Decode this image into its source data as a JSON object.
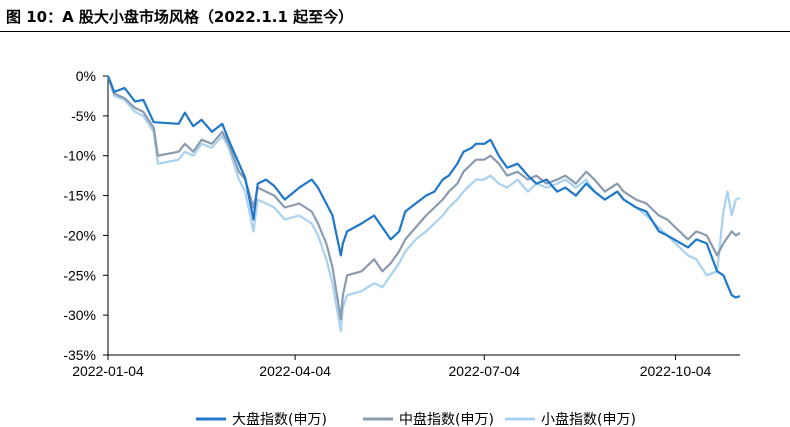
{
  "figure": {
    "title": "图 10：A 股大小盘市场风格（2022.1.1 起至今）"
  },
  "chart_data": {
    "type": "line",
    "ylim": [
      -35,
      0
    ],
    "yticks": [
      0,
      -5,
      -10,
      -15,
      -20,
      -25,
      -30,
      -35
    ],
    "ytick_labels": [
      "0%",
      "-5%",
      "-10%",
      "-15%",
      "-20%",
      "-25%",
      "-30%",
      "-35%"
    ],
    "xlim": [
      "2022-01-04",
      "2022-11-04"
    ],
    "xtick_labels": [
      "2022-01-04",
      "2022-04-04",
      "2022-07-04",
      "2022-10-04"
    ],
    "xticks": [
      "2022-01-04",
      "2022-04-04",
      "2022-07-04",
      "2022-10-04"
    ],
    "grid": false,
    "legend_position": "bottom",
    "series": [
      {
        "name": "大盘指数(申万)",
        "color": "#1f77c8",
        "points": [
          [
            "2022-01-04",
            0
          ],
          [
            "2022-01-07",
            -2.0
          ],
          [
            "2022-01-12",
            -1.5
          ],
          [
            "2022-01-17",
            -3.2
          ],
          [
            "2022-01-21",
            -3.0
          ],
          [
            "2022-01-26",
            -5.8
          ],
          [
            "2022-02-07",
            -6.0
          ],
          [
            "2022-02-10",
            -4.6
          ],
          [
            "2022-02-14",
            -6.3
          ],
          [
            "2022-02-18",
            -5.5
          ],
          [
            "2022-02-23",
            -7.0
          ],
          [
            "2022-02-28",
            -6.0
          ],
          [
            "2022-03-03",
            -8.0
          ],
          [
            "2022-03-08",
            -11.0
          ],
          [
            "2022-03-11",
            -12.8
          ],
          [
            "2022-03-15",
            -18.0
          ],
          [
            "2022-03-17",
            -13.5
          ],
          [
            "2022-03-21",
            -13.0
          ],
          [
            "2022-03-25",
            -13.8
          ],
          [
            "2022-03-30",
            -15.5
          ],
          [
            "2022-04-06",
            -14.0
          ],
          [
            "2022-04-12",
            -13.0
          ],
          [
            "2022-04-15",
            -14.0
          ],
          [
            "2022-04-19",
            -16.0
          ],
          [
            "2022-04-22",
            -17.5
          ],
          [
            "2022-04-26",
            -22.5
          ],
          [
            "2022-04-27",
            -21.0
          ],
          [
            "2022-04-29",
            -19.5
          ],
          [
            "2022-05-06",
            -18.5
          ],
          [
            "2022-05-12",
            -17.5
          ],
          [
            "2022-05-16",
            -19.0
          ],
          [
            "2022-05-20",
            -20.5
          ],
          [
            "2022-05-24",
            -19.5
          ],
          [
            "2022-05-27",
            -17.0
          ],
          [
            "2022-06-01",
            -16.0
          ],
          [
            "2022-06-06",
            -15.0
          ],
          [
            "2022-06-10",
            -14.5
          ],
          [
            "2022-06-14",
            -13.0
          ],
          [
            "2022-06-17",
            -12.5
          ],
          [
            "2022-06-21",
            -11.0
          ],
          [
            "2022-06-24",
            -9.5
          ],
          [
            "2022-06-28",
            -9.0
          ],
          [
            "2022-06-30",
            -8.5
          ],
          [
            "2022-07-04",
            -8.5
          ],
          [
            "2022-07-07",
            -8.0
          ],
          [
            "2022-07-11",
            -10.0
          ],
          [
            "2022-07-15",
            -11.5
          ],
          [
            "2022-07-20",
            -11.0
          ],
          [
            "2022-07-25",
            -12.5
          ],
          [
            "2022-07-29",
            -13.5
          ],
          [
            "2022-08-03",
            -13.0
          ],
          [
            "2022-08-08",
            -14.5
          ],
          [
            "2022-08-12",
            -14.0
          ],
          [
            "2022-08-17",
            -15.0
          ],
          [
            "2022-08-22",
            -13.5
          ],
          [
            "2022-08-26",
            -14.5
          ],
          [
            "2022-08-31",
            -15.5
          ],
          [
            "2022-09-06",
            -14.5
          ],
          [
            "2022-09-09",
            -15.5
          ],
          [
            "2022-09-15",
            -16.5
          ],
          [
            "2022-09-20",
            -17.0
          ],
          [
            "2022-09-26",
            -19.5
          ],
          [
            "2022-09-30",
            -20.0
          ],
          [
            "2022-10-10",
            -21.5
          ],
          [
            "2022-10-14",
            -20.5
          ],
          [
            "2022-10-19",
            -21.0
          ],
          [
            "2022-10-24",
            -24.5
          ],
          [
            "2022-10-27",
            -25.0
          ],
          [
            "2022-10-31",
            -27.5
          ],
          [
            "2022-11-02",
            -27.8
          ],
          [
            "2022-11-04",
            -27.6
          ]
        ]
      },
      {
        "name": "中盘指数(申万)",
        "color": "#8a9bb0",
        "points": [
          [
            "2022-01-04",
            0
          ],
          [
            "2022-01-07",
            -2.2
          ],
          [
            "2022-01-12",
            -2.8
          ],
          [
            "2022-01-17",
            -4.0
          ],
          [
            "2022-01-21",
            -4.5
          ],
          [
            "2022-01-26",
            -6.5
          ],
          [
            "2022-01-28",
            -10.0
          ],
          [
            "2022-02-07",
            -9.5
          ],
          [
            "2022-02-10",
            -8.5
          ],
          [
            "2022-02-14",
            -9.5
          ],
          [
            "2022-02-18",
            -8.0
          ],
          [
            "2022-02-23",
            -8.5
          ],
          [
            "2022-02-28",
            -7.0
          ],
          [
            "2022-03-03",
            -8.5
          ],
          [
            "2022-03-08",
            -12.0
          ],
          [
            "2022-03-11",
            -13.0
          ],
          [
            "2022-03-15",
            -16.5
          ],
          [
            "2022-03-17",
            -14.0
          ],
          [
            "2022-03-21",
            -14.5
          ],
          [
            "2022-03-25",
            -15.0
          ],
          [
            "2022-03-30",
            -16.5
          ],
          [
            "2022-04-06",
            -16.0
          ],
          [
            "2022-04-12",
            -17.0
          ],
          [
            "2022-04-15",
            -18.5
          ],
          [
            "2022-04-19",
            -21.0
          ],
          [
            "2022-04-22",
            -24.0
          ],
          [
            "2022-04-26",
            -30.5
          ],
          [
            "2022-04-27",
            -27.5
          ],
          [
            "2022-04-29",
            -25.0
          ],
          [
            "2022-05-06",
            -24.5
          ],
          [
            "2022-05-12",
            -23.0
          ],
          [
            "2022-05-16",
            -24.5
          ],
          [
            "2022-05-20",
            -23.5
          ],
          [
            "2022-05-24",
            -22.0
          ],
          [
            "2022-05-27",
            -20.5
          ],
          [
            "2022-06-01",
            -19.0
          ],
          [
            "2022-06-06",
            -17.5
          ],
          [
            "2022-06-10",
            -16.5
          ],
          [
            "2022-06-14",
            -15.5
          ],
          [
            "2022-06-17",
            -14.5
          ],
          [
            "2022-06-21",
            -13.5
          ],
          [
            "2022-06-24",
            -12.0
          ],
          [
            "2022-06-28",
            -11.0
          ],
          [
            "2022-06-30",
            -10.5
          ],
          [
            "2022-07-04",
            -10.5
          ],
          [
            "2022-07-07",
            -10.0
          ],
          [
            "2022-07-11",
            -11.0
          ],
          [
            "2022-07-15",
            -12.5
          ],
          [
            "2022-07-20",
            -12.0
          ],
          [
            "2022-07-25",
            -13.0
          ],
          [
            "2022-07-29",
            -12.5
          ],
          [
            "2022-08-03",
            -13.5
          ],
          [
            "2022-08-08",
            -13.0
          ],
          [
            "2022-08-12",
            -12.5
          ],
          [
            "2022-08-17",
            -13.5
          ],
          [
            "2022-08-22",
            -12.0
          ],
          [
            "2022-08-26",
            -13.0
          ],
          [
            "2022-08-31",
            -14.5
          ],
          [
            "2022-09-06",
            -13.5
          ],
          [
            "2022-09-09",
            -14.5
          ],
          [
            "2022-09-15",
            -15.5
          ],
          [
            "2022-09-20",
            -16.0
          ],
          [
            "2022-09-26",
            -17.5
          ],
          [
            "2022-09-30",
            -18.0
          ],
          [
            "2022-10-10",
            -20.5
          ],
          [
            "2022-10-14",
            -19.5
          ],
          [
            "2022-10-19",
            -20.0
          ],
          [
            "2022-10-24",
            -22.5
          ],
          [
            "2022-10-27",
            -21.0
          ],
          [
            "2022-10-31",
            -19.5
          ],
          [
            "2022-11-02",
            -20.0
          ],
          [
            "2022-11-04",
            -19.7
          ]
        ]
      },
      {
        "name": "小盘指数(申万)",
        "color": "#a9d1f0",
        "points": [
          [
            "2022-01-04",
            0
          ],
          [
            "2022-01-07",
            -2.5
          ],
          [
            "2022-01-12",
            -3.0
          ],
          [
            "2022-01-17",
            -4.5
          ],
          [
            "2022-01-21",
            -5.0
          ],
          [
            "2022-01-26",
            -7.0
          ],
          [
            "2022-01-28",
            -11.0
          ],
          [
            "2022-02-07",
            -10.5
          ],
          [
            "2022-02-10",
            -9.5
          ],
          [
            "2022-02-14",
            -10.0
          ],
          [
            "2022-02-18",
            -8.5
          ],
          [
            "2022-02-23",
            -9.0
          ],
          [
            "2022-02-28",
            -7.5
          ],
          [
            "2022-03-03",
            -9.0
          ],
          [
            "2022-03-08",
            -13.0
          ],
          [
            "2022-03-11",
            -14.5
          ],
          [
            "2022-03-15",
            -19.5
          ],
          [
            "2022-03-17",
            -15.5
          ],
          [
            "2022-03-21",
            -16.0
          ],
          [
            "2022-03-25",
            -16.5
          ],
          [
            "2022-03-30",
            -18.0
          ],
          [
            "2022-04-06",
            -17.5
          ],
          [
            "2022-04-12",
            -18.5
          ],
          [
            "2022-04-15",
            -20.0
          ],
          [
            "2022-04-19",
            -23.0
          ],
          [
            "2022-04-22",
            -26.0
          ],
          [
            "2022-04-26",
            -32.0
          ],
          [
            "2022-04-27",
            -29.0
          ],
          [
            "2022-04-29",
            -27.5
          ],
          [
            "2022-05-06",
            -27.0
          ],
          [
            "2022-05-12",
            -26.0
          ],
          [
            "2022-05-16",
            -26.5
          ],
          [
            "2022-05-20",
            -25.0
          ],
          [
            "2022-05-24",
            -23.5
          ],
          [
            "2022-05-27",
            -22.0
          ],
          [
            "2022-06-01",
            -20.5
          ],
          [
            "2022-06-06",
            -19.5
          ],
          [
            "2022-06-10",
            -18.5
          ],
          [
            "2022-06-14",
            -17.5
          ],
          [
            "2022-06-17",
            -16.5
          ],
          [
            "2022-06-21",
            -15.5
          ],
          [
            "2022-06-24",
            -14.5
          ],
          [
            "2022-06-28",
            -13.5
          ],
          [
            "2022-06-30",
            -13.0
          ],
          [
            "2022-07-04",
            -13.0
          ],
          [
            "2022-07-07",
            -12.5
          ],
          [
            "2022-07-11",
            -13.5
          ],
          [
            "2022-07-15",
            -14.0
          ],
          [
            "2022-07-20",
            -13.0
          ],
          [
            "2022-07-25",
            -14.5
          ],
          [
            "2022-07-29",
            -13.5
          ],
          [
            "2022-08-03",
            -14.0
          ],
          [
            "2022-08-08",
            -13.5
          ],
          [
            "2022-08-12",
            -13.0
          ],
          [
            "2022-08-17",
            -14.0
          ],
          [
            "2022-08-22",
            -13.0
          ],
          [
            "2022-08-26",
            -14.5
          ],
          [
            "2022-08-31",
            -15.5
          ],
          [
            "2022-09-06",
            -14.5
          ],
          [
            "2022-09-09",
            -15.5
          ],
          [
            "2022-09-15",
            -16.5
          ],
          [
            "2022-09-20",
            -17.5
          ],
          [
            "2022-09-26",
            -19.0
          ],
          [
            "2022-09-30",
            -20.0
          ],
          [
            "2022-10-10",
            -22.5
          ],
          [
            "2022-10-14",
            -23.0
          ],
          [
            "2022-10-19",
            -25.0
          ],
          [
            "2022-10-24",
            -24.5
          ],
          [
            "2022-10-27",
            -17.0
          ],
          [
            "2022-10-29",
            -14.5
          ],
          [
            "2022-10-31",
            -17.5
          ],
          [
            "2022-11-02",
            -15.5
          ],
          [
            "2022-11-04",
            -15.3
          ]
        ]
      }
    ]
  }
}
